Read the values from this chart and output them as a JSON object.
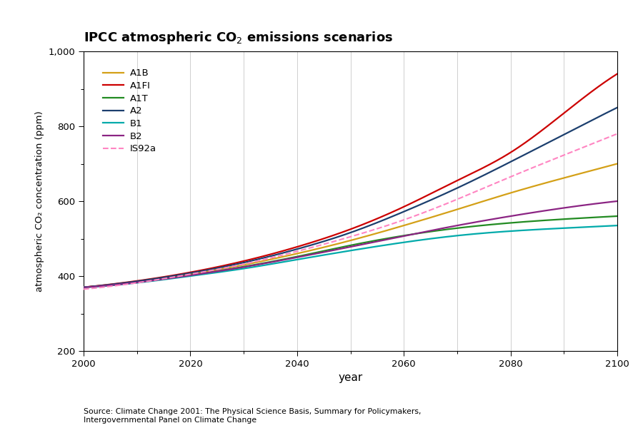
{
  "title": "IPCC atmospheric CO₂ emissions scenarios",
  "xlabel": "year",
  "ylabel": "atmospheric CO₂ concentration (ppm)",
  "source_line1": "Source: Climate Change 2001: The Physical Science Basis, Summary for Policymakers,",
  "source_line2": "Intergovernmental Panel on Climate Change",
  "xlim": [
    2000,
    2100
  ],
  "ylim": [
    200,
    1000
  ],
  "yticks": [
    200,
    400,
    600,
    800,
    1000
  ],
  "ytick_labels": [
    "200",
    "400",
    "600",
    "800",
    "1,000"
  ],
  "xticks": [
    2000,
    2020,
    2040,
    2060,
    2080,
    2100
  ],
  "scenarios": {
    "A1B": {
      "color": "#D4A017",
      "linestyle": "solid",
      "linewidth": 1.6,
      "points": [
        [
          2000,
          370
        ],
        [
          2010,
          385
        ],
        [
          2020,
          405
        ],
        [
          2030,
          430
        ],
        [
          2040,
          460
        ],
        [
          2050,
          495
        ],
        [
          2060,
          535
        ],
        [
          2070,
          578
        ],
        [
          2080,
          622
        ],
        [
          2090,
          662
        ],
        [
          2100,
          700
        ]
      ]
    },
    "A1FI": {
      "color": "#CC0000",
      "linestyle": "solid",
      "linewidth": 1.6,
      "points": [
        [
          2000,
          370
        ],
        [
          2010,
          387
        ],
        [
          2020,
          410
        ],
        [
          2030,
          440
        ],
        [
          2040,
          478
        ],
        [
          2050,
          525
        ],
        [
          2060,
          585
        ],
        [
          2070,
          655
        ],
        [
          2080,
          730
        ],
        [
          2090,
          835
        ],
        [
          2100,
          940
        ]
      ]
    },
    "A1T": {
      "color": "#228B22",
      "linestyle": "solid",
      "linewidth": 1.6,
      "points": [
        [
          2000,
          370
        ],
        [
          2010,
          383
        ],
        [
          2020,
          402
        ],
        [
          2030,
          425
        ],
        [
          2040,
          452
        ],
        [
          2050,
          482
        ],
        [
          2060,
          508
        ],
        [
          2070,
          528
        ],
        [
          2080,
          542
        ],
        [
          2090,
          552
        ],
        [
          2100,
          560
        ]
      ]
    },
    "A2": {
      "color": "#1C3F6E",
      "linestyle": "solid",
      "linewidth": 1.6,
      "points": [
        [
          2000,
          370
        ],
        [
          2010,
          386
        ],
        [
          2020,
          408
        ],
        [
          2030,
          436
        ],
        [
          2040,
          472
        ],
        [
          2050,
          516
        ],
        [
          2060,
          572
        ],
        [
          2070,
          635
        ],
        [
          2080,
          705
        ],
        [
          2090,
          778
        ],
        [
          2100,
          850
        ]
      ]
    },
    "B1": {
      "color": "#00AAAA",
      "linestyle": "solid",
      "linewidth": 1.6,
      "points": [
        [
          2000,
          370
        ],
        [
          2010,
          382
        ],
        [
          2020,
          400
        ],
        [
          2030,
          420
        ],
        [
          2040,
          444
        ],
        [
          2050,
          468
        ],
        [
          2060,
          490
        ],
        [
          2070,
          508
        ],
        [
          2080,
          520
        ],
        [
          2090,
          528
        ],
        [
          2100,
          535
        ]
      ]
    },
    "B2": {
      "color": "#8B2483",
      "linestyle": "solid",
      "linewidth": 1.6,
      "points": [
        [
          2000,
          370
        ],
        [
          2010,
          383
        ],
        [
          2020,
          402
        ],
        [
          2030,
          424
        ],
        [
          2040,
          450
        ],
        [
          2050,
          478
        ],
        [
          2060,
          507
        ],
        [
          2070,
          535
        ],
        [
          2080,
          560
        ],
        [
          2090,
          582
        ],
        [
          2100,
          600
        ]
      ]
    },
    "IS92a": {
      "color": "#FF85C2",
      "linestyle": "dashed",
      "linewidth": 1.5,
      "points": [
        [
          2000,
          365
        ],
        [
          2010,
          382
        ],
        [
          2020,
          405
        ],
        [
          2030,
          432
        ],
        [
          2040,
          466
        ],
        [
          2050,
          505
        ],
        [
          2060,
          550
        ],
        [
          2070,
          605
        ],
        [
          2080,
          665
        ],
        [
          2090,
          723
        ],
        [
          2100,
          780
        ]
      ]
    }
  },
  "background_color": "#ffffff",
  "grid_color": "#c8c8c8",
  "legend_order": [
    "A1B",
    "A1FI",
    "A1T",
    "A2",
    "B1",
    "B2",
    "IS92a"
  ]
}
